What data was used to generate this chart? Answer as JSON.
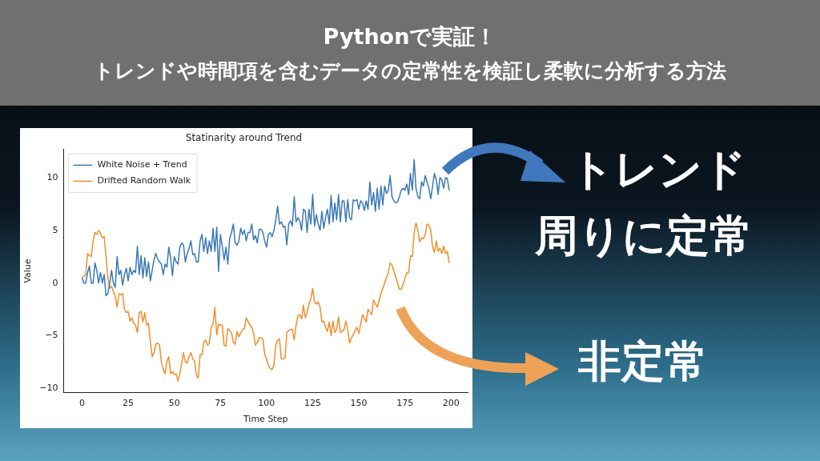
{
  "chart_data": {
    "type": "line",
    "title": "Statinarity around Trend",
    "xlabel": "Time Step",
    "ylabel": "Value",
    "annotations": [
      "Pythonで実証！",
      "トレンドや時間項を含むデータの定常性を検証し柔軟に分析する方法",
      "トレンド",
      "周りに定常",
      "非定常"
    ],
    "xlim": [
      -10,
      209
    ],
    "ylim": [
      -10.4,
      12.7
    ],
    "xticks": [
      0,
      25,
      50,
      75,
      100,
      125,
      150,
      175,
      200
    ],
    "yticks": [
      {
        "value": -10,
        "label": "−10"
      },
      {
        "value": -5,
        "label": "−5"
      },
      0,
      5,
      10
    ],
    "grid": false,
    "legend": "top left",
    "marker": "none",
    "line_style": "solid",
    "series": [
      {
        "name": "White Noise + Trend",
        "color": "#3a78b5",
        "x": [
          0,
          1,
          2,
          3,
          4,
          5,
          6,
          7,
          8,
          9,
          10,
          11,
          12,
          13,
          14,
          15,
          16,
          17,
          18,
          19,
          20,
          21,
          22,
          23,
          24,
          25,
          26,
          27,
          28,
          29,
          30,
          31,
          32,
          33,
          34,
          35,
          36,
          37,
          38,
          39,
          40,
          41,
          42,
          43,
          44,
          45,
          46,
          47,
          48,
          49,
          50,
          51,
          52,
          53,
          54,
          55,
          56,
          57,
          58,
          59,
          60,
          61,
          62,
          63,
          64,
          65,
          66,
          67,
          68,
          69,
          70,
          71,
          72,
          73,
          74,
          75,
          76,
          77,
          78,
          79,
          80,
          81,
          82,
          83,
          84,
          85,
          86,
          87,
          88,
          89,
          90,
          91,
          92,
          93,
          94,
          95,
          96,
          97,
          98,
          99,
          100,
          101,
          102,
          103,
          104,
          105,
          106,
          107,
          108,
          109,
          110,
          111,
          112,
          113,
          114,
          115,
          116,
          117,
          118,
          119,
          120,
          121,
          122,
          123,
          124,
          125,
          126,
          127,
          128,
          129,
          130,
          131,
          132,
          133,
          134,
          135,
          136,
          137,
          138,
          139,
          140,
          141,
          142,
          143,
          144,
          145,
          146,
          147,
          148,
          149,
          150,
          151,
          152,
          153,
          154,
          155,
          156,
          157,
          158,
          159,
          160,
          161,
          162,
          163,
          164,
          165,
          166,
          167,
          168,
          169,
          170,
          171,
          172,
          173,
          174,
          175,
          176,
          177,
          178,
          179,
          180,
          181,
          182,
          183,
          184,
          185,
          186,
          187,
          188,
          189,
          190,
          191,
          192,
          193,
          194,
          195,
          196,
          197,
          198,
          199
        ],
        "values": [
          0.5,
          0.0,
          0.0,
          1.0,
          1.6,
          0.0,
          0.0,
          1.9,
          1.2,
          0.0,
          1.0,
          0.0,
          0.8,
          -1.2,
          -1.0,
          0.0,
          1.2,
          0.0,
          -0.4,
          2.5,
          0.8,
          1.2,
          -0.2,
          0.8,
          1.4,
          0.2,
          1.5,
          0.8,
          1.2,
          1.0,
          3.5,
          0.8,
          2.6,
          0.5,
          2.4,
          0.6,
          2.0,
          0.2,
          1.2,
          2.2,
          2.8,
          2.3,
          2.0,
          1.8,
          0.8,
          1.8,
          1.5,
          3.4,
          2.4,
          0.7,
          2.5,
          2.0,
          1.8,
          3.4,
          3.8,
          3.6,
          2.0,
          2.8,
          3.3,
          4.0,
          2.7,
          2.8,
          2.0,
          2.0,
          4.0,
          4.6,
          3.0,
          4.3,
          2.8,
          4.0,
          3.0,
          5.2,
          3.0,
          5.3,
          1.1,
          4.6,
          3.5,
          2.2,
          3.4,
          1.8,
          4.2,
          4.8,
          5.6,
          3.8,
          3.6,
          4.0,
          5.2,
          4.6,
          5.0,
          4.0,
          4.8,
          4.8,
          5.6,
          4.1,
          4.5,
          3.8,
          5.1,
          5.1,
          4.8,
          4.0,
          3.4,
          4.6,
          4.8,
          4.4,
          5.0,
          6.0,
          7.3,
          5.6,
          5.8,
          5.3,
          5.4,
          3.6,
          5.6,
          5.9,
          5.4,
          8.2,
          5.8,
          6.2,
          5.9,
          5.0,
          7.0,
          6.8,
          4.8,
          7.0,
          5.6,
          8.4,
          5.4,
          6.5,
          5.6,
          5.0,
          6.8,
          5.2,
          6.2,
          7.0,
          5.6,
          8.3,
          5.8,
          7.6,
          6.0,
          8.4,
          5.8,
          7.8,
          7.8,
          5.8,
          7.9,
          6.2,
          6.0,
          7.9,
          7.8,
          7.9,
          7.0,
          7.8,
          7.6,
          6.9,
          7.8,
          7.0,
          9.6,
          7.4,
          8.6,
          6.8,
          9.0,
          7.0,
          9.2,
          7.4,
          9.2,
          8.5,
          8.8,
          10.2,
          8.2,
          7.8,
          7.6,
          7.7,
          8.2,
          8.8,
          9.0,
          8.8,
          9.4,
          8.4,
          10.4,
          8.8,
          11.7,
          9.0,
          8.2,
          8.0,
          9.6,
          9.2,
          10.2,
          9.6,
          9.0,
          8.0,
          9.2,
          10.4,
          9.8,
          8.4,
          10.0,
          9.8,
          9.0,
          10.0,
          9.9,
          8.8
        ]
      },
      {
        "name": "Drifted Random Walk",
        "color": "#f28e2b",
        "x": [
          0,
          2,
          3,
          4,
          5,
          6,
          7,
          8,
          9,
          10,
          11,
          12,
          13,
          14,
          15,
          16,
          17,
          18,
          19,
          20,
          21,
          22,
          23,
          24,
          25,
          26,
          27,
          28,
          29,
          30,
          31,
          32,
          33,
          34,
          35,
          36,
          37,
          38,
          39,
          40,
          41,
          42,
          43,
          44,
          45,
          46,
          47,
          48,
          49,
          50,
          51,
          52,
          53,
          54,
          55,
          56,
          57,
          58,
          59,
          60,
          61,
          62,
          63,
          64,
          65,
          66,
          67,
          68,
          69,
          70,
          71,
          72,
          73,
          74,
          75,
          76,
          77,
          78,
          79,
          81,
          82,
          83,
          84,
          85,
          86,
          87,
          88,
          89,
          91,
          92,
          93,
          94,
          95,
          96,
          97,
          98,
          99,
          100,
          101,
          102,
          103,
          104,
          105,
          106,
          107,
          108,
          109,
          110,
          111,
          112,
          113,
          114,
          115,
          116,
          117,
          118,
          119,
          120,
          121,
          122,
          123,
          124,
          125,
          126,
          127,
          128,
          129,
          130,
          131,
          132,
          133,
          134,
          135,
          136,
          137,
          138,
          139,
          140,
          141,
          142,
          143,
          144,
          145,
          146,
          147,
          148,
          149,
          150,
          152,
          154,
          155,
          157,
          158,
          160,
          162,
          164,
          166,
          167,
          168,
          170,
          172,
          173,
          175,
          176,
          177,
          178,
          179,
          180,
          181,
          182,
          183,
          184,
          185,
          186,
          187,
          188,
          189,
          190,
          191,
          192,
          193,
          194,
          195,
          196,
          197,
          198,
          199
        ],
        "values": [
          0.5,
          0.8,
          2.8,
          2.6,
          2.5,
          4.0,
          4.8,
          4.6,
          5.0,
          4.7,
          4.3,
          4.4,
          2.5,
          0.5,
          -0.5,
          -0.3,
          -0.8,
          -1.3,
          -2.3,
          -1.0,
          -1.1,
          -1.0,
          -2.5,
          -2.8,
          -2.7,
          -3.6,
          -3.3,
          -3.8,
          -4.0,
          -4.7,
          -2.8,
          -2.7,
          -3.7,
          -2.8,
          -4.0,
          -3.8,
          -5.5,
          -7.0,
          -6.6,
          -5.8,
          -5.7,
          -5.9,
          -7.5,
          -8.2,
          -8.6,
          -7.4,
          -7.0,
          -8.6,
          -8.4,
          -8.7,
          -8.6,
          -9.3,
          -8.6,
          -7.6,
          -6.6,
          -7.5,
          -7.6,
          -7.0,
          -6.6,
          -7.2,
          -7.4,
          -8.8,
          -9.0,
          -6.8,
          -6.8,
          -5.6,
          -5.4,
          -5.9,
          -5.7,
          -4.2,
          -3.9,
          -2.3,
          -4.9,
          -3.9,
          -4.0,
          -4.0,
          -5.9,
          -6.0,
          -4.3,
          -4.7,
          -5.6,
          -5.8,
          -4.6,
          -5.1,
          -4.7,
          -4.4,
          -4.3,
          -3.3,
          -4.0,
          -4.2,
          -4.8,
          -5.9,
          -5.6,
          -5.2,
          -5.2,
          -5.3,
          -6.8,
          -7.2,
          -7.8,
          -8.1,
          -8.2,
          -7.8,
          -5.9,
          -5.4,
          -5.3,
          -7.2,
          -7.2,
          -7.1,
          -4.7,
          -4.5,
          -4.4,
          -4.4,
          -5.4,
          -4.0,
          -3.1,
          -3.0,
          -3.4,
          -2.1,
          -3.3,
          -2.8,
          -2.0,
          -1.5,
          -0.5,
          -1.8,
          -2.0,
          -1.8,
          -2.3,
          -3.7,
          -3.6,
          -4.2,
          -4.6,
          -3.7,
          -5.0,
          -3.6,
          -4.7,
          -4.4,
          -3.2,
          -4.7,
          -4.6,
          -4.4,
          -3.6,
          -4.5,
          -5.7,
          -5.2,
          -4.9,
          -4.5,
          -4.2,
          -4.8,
          -3.0,
          -3.7,
          -2.5,
          -3.0,
          -1.6,
          -2.3,
          -1.0,
          0.0,
          1.0,
          1.9,
          1.7,
          0.6,
          -0.6,
          -0.6,
          0.4,
          1.0,
          1.0,
          2.6,
          2.5,
          4.8,
          5.7,
          5.0,
          3.9,
          4.3,
          4.2,
          4.6,
          5.6,
          5.5,
          5.0,
          3.4,
          2.9,
          4.0,
          3.0,
          3.3,
          2.8,
          3.5,
          2.8,
          3.0,
          1.9
        ]
      }
    ]
  }
}
